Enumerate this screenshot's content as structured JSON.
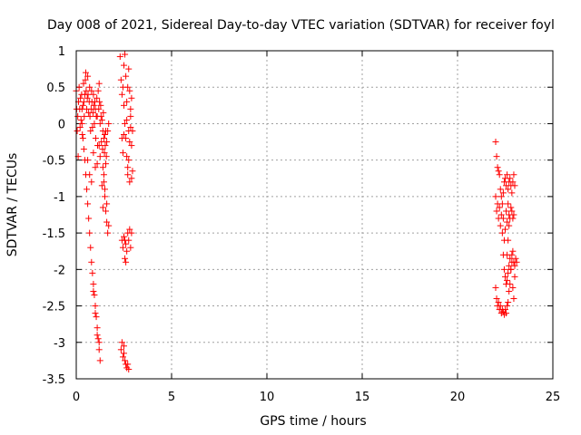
{
  "chart_data": {
    "type": "scatter",
    "title": "Day 008 of 2021, Sidereal Day-to-day VTEC variation (SDTVAR) for receiver foyl",
    "xlabel": "GPS time / hours",
    "ylabel": "SDTVAR / TECUs",
    "xlim": [
      0,
      25
    ],
    "ylim": [
      -3.5,
      1
    ],
    "xticks": [
      "0",
      "5",
      "10",
      "15",
      "20",
      "25"
    ],
    "yticks": [
      "1",
      "0.5",
      "0",
      "-0.5",
      "-1",
      "-1.5",
      "-2",
      "-2.5",
      "-3",
      "-3.5"
    ],
    "grid": true,
    "marker": "+",
    "color": "#ff0000",
    "series": [
      {
        "name": "SDTVAR",
        "points": [
          [
            0.0,
            0.45
          ],
          [
            0.02,
            0.2
          ],
          [
            0.05,
            -0.1
          ],
          [
            0.08,
            0.1
          ],
          [
            0.1,
            -0.45
          ],
          [
            0.12,
            0.3
          ],
          [
            0.15,
            0.5
          ],
          [
            0.18,
            0.2
          ],
          [
            0.2,
            -0.05
          ],
          [
            0.22,
            0.35
          ],
          [
            0.25,
            0.05
          ],
          [
            0.28,
            0.4
          ],
          [
            0.3,
            0.2
          ],
          [
            0.32,
            -0.15
          ],
          [
            0.35,
            0.25
          ],
          [
            0.38,
            0.55
          ],
          [
            0.4,
            0.3
          ],
          [
            0.42,
            0.1
          ],
          [
            0.45,
            0.4
          ],
          [
            0.48,
            0.6
          ],
          [
            0.5,
            0.7
          ],
          [
            0.52,
            0.45
          ],
          [
            0.55,
            0.2
          ],
          [
            0.58,
            0.35
          ],
          [
            0.6,
            0.65
          ],
          [
            0.62,
            0.4
          ],
          [
            0.65,
            0.15
          ],
          [
            0.68,
            0.3
          ],
          [
            0.7,
            0.5
          ],
          [
            0.72,
            0.1
          ],
          [
            0.75,
            -0.1
          ],
          [
            0.78,
            0.2
          ],
          [
            0.8,
            0.45
          ],
          [
            0.82,
            0.3
          ],
          [
            0.85,
            -0.05
          ],
          [
            0.88,
            0.15
          ],
          [
            0.9,
            0.4
          ],
          [
            0.92,
            0.25
          ],
          [
            0.95,
            0.0
          ],
          [
            0.98,
            0.3
          ],
          [
            1.0,
            0.2
          ],
          [
            1.02,
            -0.2
          ],
          [
            1.05,
            0.1
          ],
          [
            1.08,
            0.35
          ],
          [
            1.1,
            0.1
          ],
          [
            1.12,
            -0.3
          ],
          [
            1.15,
            0.45
          ],
          [
            1.18,
            0.2
          ],
          [
            1.2,
            0.55
          ],
          [
            1.22,
            0.3
          ],
          [
            1.25,
            0.0
          ],
          [
            1.28,
            0.25
          ],
          [
            1.3,
            0.1
          ],
          [
            1.32,
            -0.25
          ],
          [
            1.35,
            0.05
          ],
          [
            1.38,
            -0.35
          ],
          [
            1.4,
            -0.1
          ],
          [
            1.42,
            0.15
          ],
          [
            1.45,
            -0.2
          ],
          [
            1.48,
            -0.4
          ],
          [
            1.5,
            -0.15
          ],
          [
            1.52,
            -0.3
          ],
          [
            1.55,
            -0.1
          ],
          [
            1.58,
            -0.45
          ],
          [
            0.3,
            0.0
          ],
          [
            0.35,
            -0.2
          ],
          [
            0.4,
            -0.35
          ],
          [
            0.45,
            -0.5
          ],
          [
            0.5,
            -0.7
          ],
          [
            0.55,
            -0.9
          ],
          [
            0.6,
            -1.1
          ],
          [
            0.65,
            -1.3
          ],
          [
            0.7,
            -1.5
          ],
          [
            0.75,
            -1.7
          ],
          [
            0.8,
            -1.9
          ],
          [
            0.85,
            -2.05
          ],
          [
            0.9,
            -2.2
          ],
          [
            0.95,
            -2.35
          ],
          [
            1.0,
            -2.5
          ],
          [
            1.05,
            -2.65
          ],
          [
            1.1,
            -2.8
          ],
          [
            1.15,
            -2.95
          ],
          [
            1.2,
            -3.1
          ],
          [
            1.25,
            -3.25
          ],
          [
            1.2,
            -3.0
          ],
          [
            1.1,
            -2.9
          ],
          [
            1.0,
            -2.6
          ],
          [
            0.9,
            -2.3
          ],
          [
            0.6,
            -0.5
          ],
          [
            0.7,
            -0.7
          ],
          [
            0.8,
            -0.8
          ],
          [
            0.9,
            -0.4
          ],
          [
            1.0,
            -0.6
          ],
          [
            1.1,
            -0.55
          ],
          [
            1.2,
            -0.3
          ],
          [
            1.25,
            -0.45
          ],
          [
            1.4,
            -0.6
          ],
          [
            1.45,
            -0.8
          ],
          [
            1.5,
            -1.0
          ],
          [
            1.55,
            -1.2
          ],
          [
            1.6,
            -1.35
          ],
          [
            1.65,
            -1.5
          ],
          [
            1.7,
            -1.4
          ],
          [
            1.6,
            -1.1
          ],
          [
            1.5,
            -0.9
          ],
          [
            1.55,
            -0.55
          ],
          [
            1.6,
            -0.25
          ],
          [
            1.65,
            -0.1
          ],
          [
            1.7,
            0.0
          ],
          [
            1.45,
            -0.7
          ],
          [
            1.35,
            -0.85
          ],
          [
            1.4,
            -1.15
          ],
          [
            2.3,
            0.92
          ],
          [
            2.35,
            0.6
          ],
          [
            2.4,
            0.4
          ],
          [
            2.45,
            0.5
          ],
          [
            2.5,
            0.8
          ],
          [
            2.55,
            0.95
          ],
          [
            2.6,
            0.65
          ],
          [
            2.65,
            0.3
          ],
          [
            2.7,
            0.5
          ],
          [
            2.75,
            0.75
          ],
          [
            2.8,
            0.45
          ],
          [
            2.85,
            0.2
          ],
          [
            2.9,
            0.35
          ],
          [
            2.5,
            0.25
          ],
          [
            2.55,
            0.0
          ],
          [
            2.6,
            -0.2
          ],
          [
            2.65,
            -0.45
          ],
          [
            2.7,
            -0.6
          ],
          [
            2.75,
            -0.5
          ],
          [
            2.8,
            -0.25
          ],
          [
            2.85,
            -0.05
          ],
          [
            2.9,
            -0.3
          ],
          [
            2.95,
            -0.65
          ],
          [
            2.95,
            -0.1
          ],
          [
            2.4,
            -0.2
          ],
          [
            2.45,
            -0.4
          ],
          [
            2.5,
            -0.15
          ],
          [
            2.4,
            -1.6
          ],
          [
            2.45,
            -1.7
          ],
          [
            2.5,
            -1.55
          ],
          [
            2.55,
            -1.85
          ],
          [
            2.6,
            -1.65
          ],
          [
            2.65,
            -1.75
          ],
          [
            2.7,
            -1.5
          ],
          [
            2.75,
            -1.6
          ],
          [
            2.8,
            -1.45
          ],
          [
            2.85,
            -1.7
          ],
          [
            2.9,
            -1.5
          ],
          [
            2.6,
            -1.9
          ],
          [
            2.55,
            -1.6
          ],
          [
            2.4,
            -3.0
          ],
          [
            2.45,
            -3.2
          ],
          [
            2.5,
            -3.15
          ],
          [
            2.55,
            -3.25
          ],
          [
            2.6,
            -3.3
          ],
          [
            2.65,
            -3.35
          ],
          [
            2.7,
            -3.3
          ],
          [
            2.75,
            -3.37
          ],
          [
            2.5,
            -3.05
          ],
          [
            2.35,
            -3.1
          ],
          [
            2.9,
            -0.75
          ],
          [
            2.8,
            -0.8
          ],
          [
            2.7,
            -0.7
          ],
          [
            2.85,
            0.1
          ],
          [
            2.75,
            -0.1
          ],
          [
            2.65,
            0.05
          ],
          [
            22.0,
            -0.25
          ],
          [
            22.05,
            -0.45
          ],
          [
            22.1,
            -0.6
          ],
          [
            22.15,
            -0.65
          ],
          [
            22.2,
            -0.7
          ],
          [
            22.25,
            -0.9
          ],
          [
            22.3,
            -1.0
          ],
          [
            22.35,
            -1.1
          ],
          [
            22.4,
            -0.95
          ],
          [
            22.45,
            -0.8
          ],
          [
            22.5,
            -0.75
          ],
          [
            22.55,
            -0.85
          ],
          [
            22.6,
            -0.7
          ],
          [
            22.65,
            -0.9
          ],
          [
            22.7,
            -0.8
          ],
          [
            22.75,
            -0.75
          ],
          [
            22.8,
            -0.85
          ],
          [
            22.85,
            -0.95
          ],
          [
            22.9,
            -0.8
          ],
          [
            22.95,
            -0.7
          ],
          [
            23.0,
            -0.85
          ],
          [
            22.0,
            -1.0
          ],
          [
            22.05,
            -1.2
          ],
          [
            22.1,
            -1.1
          ],
          [
            22.15,
            -1.3
          ],
          [
            22.2,
            -1.15
          ],
          [
            22.25,
            -1.4
          ],
          [
            22.3,
            -1.25
          ],
          [
            22.35,
            -1.5
          ],
          [
            22.4,
            -1.3
          ],
          [
            22.45,
            -1.6
          ],
          [
            22.5,
            -1.45
          ],
          [
            22.55,
            -1.2
          ],
          [
            22.6,
            -1.35
          ],
          [
            22.65,
            -1.1
          ],
          [
            22.7,
            -1.25
          ],
          [
            22.75,
            -1.3
          ],
          [
            22.8,
            -1.15
          ],
          [
            22.85,
            -1.2
          ],
          [
            22.9,
            -1.3
          ],
          [
            22.95,
            -1.25
          ],
          [
            22.4,
            -1.8
          ],
          [
            22.45,
            -2.0
          ],
          [
            22.5,
            -2.1
          ],
          [
            22.55,
            -2.2
          ],
          [
            22.6,
            -2.15
          ],
          [
            22.65,
            -2.05
          ],
          [
            22.7,
            -1.95
          ],
          [
            22.75,
            -1.85
          ],
          [
            22.8,
            -2.0
          ],
          [
            22.85,
            -1.9
          ],
          [
            22.9,
            -2.25
          ],
          [
            22.95,
            -2.4
          ],
          [
            23.0,
            -2.1
          ],
          [
            22.0,
            -2.25
          ],
          [
            22.05,
            -2.4
          ],
          [
            22.1,
            -2.5
          ],
          [
            22.15,
            -2.45
          ],
          [
            22.2,
            -2.55
          ],
          [
            22.25,
            -2.5
          ],
          [
            22.3,
            -2.6
          ],
          [
            22.35,
            -2.55
          ],
          [
            22.4,
            -2.58
          ],
          [
            22.45,
            -2.62
          ],
          [
            22.5,
            -2.55
          ],
          [
            22.55,
            -2.6
          ],
          [
            22.6,
            -2.5
          ],
          [
            22.65,
            -2.45
          ],
          [
            22.7,
            -2.3
          ],
          [
            22.75,
            -2.2
          ],
          [
            22.8,
            -2.0
          ],
          [
            22.85,
            -1.8
          ],
          [
            22.9,
            -1.75
          ],
          [
            22.95,
            -1.9
          ],
          [
            23.0,
            -1.95
          ],
          [
            23.05,
            -1.85
          ],
          [
            23.1,
            -1.9
          ],
          [
            22.7,
            -1.4
          ],
          [
            22.65,
            -1.6
          ],
          [
            22.6,
            -1.8
          ]
        ]
      }
    ]
  }
}
